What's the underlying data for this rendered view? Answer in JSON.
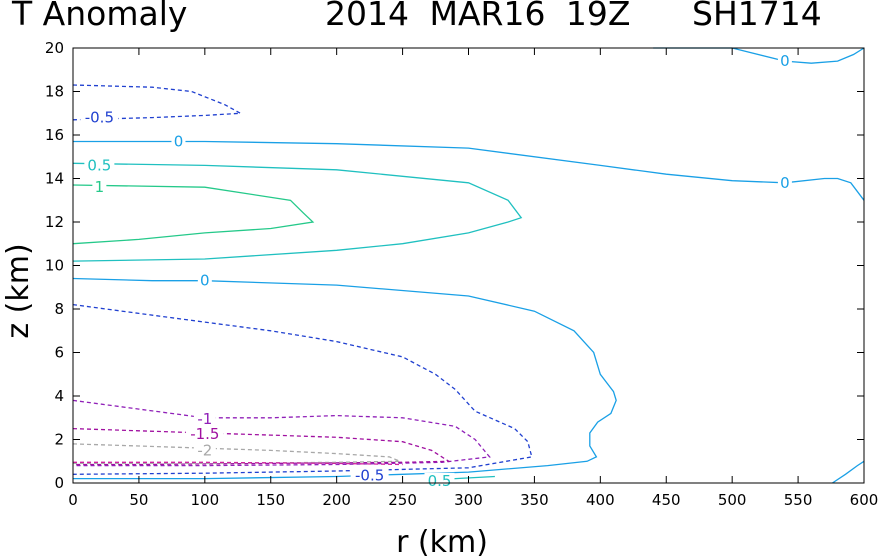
{
  "chart_data": {
    "type": "contour",
    "title": "T Anomaly",
    "subtitle": "2014 MAR16 19Z   SH1714",
    "xlabel": "r (km)",
    "ylabel": "z (km)",
    "xlim": [
      0,
      600
    ],
    "ylim": [
      0,
      20
    ],
    "x_ticks": [
      0,
      50,
      100,
      150,
      200,
      250,
      300,
      350,
      400,
      450,
      500,
      550,
      600
    ],
    "y_ticks": [
      0,
      2,
      4,
      6,
      8,
      10,
      12,
      14,
      16,
      18,
      20
    ],
    "grid": false,
    "colors": {
      "zero": "#1aa0e6",
      "pos05": "#20c0c0",
      "pos1": "#25c98a",
      "neg05": "#2040d0",
      "neg1": "#9020b8",
      "neg15": "#a010a0",
      "neg2": "#a8a8a8",
      "neg25": "#d020a0"
    },
    "contours": [
      {
        "level": "0",
        "color": "zero",
        "dashed": false,
        "points": [
          [
            440,
            20
          ],
          [
            500,
            20
          ],
          [
            540,
            19.4
          ],
          [
            560,
            19.3
          ],
          [
            580,
            19.4
          ],
          [
            592,
            19.7
          ],
          [
            600,
            20
          ]
        ]
      },
      {
        "level": "0",
        "color": "zero",
        "dashed": false,
        "points": [
          [
            0,
            15.7
          ],
          [
            100,
            15.7
          ],
          [
            200,
            15.6
          ],
          [
            300,
            15.4
          ],
          [
            400,
            14.6
          ],
          [
            450,
            14.2
          ],
          [
            500,
            13.9
          ],
          [
            540,
            13.8
          ],
          [
            570,
            14.0
          ],
          [
            580,
            14.0
          ],
          [
            590,
            13.8
          ],
          [
            600,
            13.0
          ]
        ]
      },
      {
        "level": "0",
        "color": "zero",
        "dashed": false,
        "points": [
          [
            0,
            9.4
          ],
          [
            60,
            9.3
          ],
          [
            100,
            9.3
          ],
          [
            200,
            9.1
          ],
          [
            300,
            8.6
          ],
          [
            350,
            7.9
          ],
          [
            380,
            7.0
          ],
          [
            395,
            6.0
          ],
          [
            400,
            5.0
          ],
          [
            410,
            4.2
          ],
          [
            412,
            3.8
          ],
          [
            408,
            3.2
          ],
          [
            398,
            2.8
          ],
          [
            392,
            2.3
          ],
          [
            392,
            1.7
          ],
          [
            397,
            1.2
          ],
          [
            390,
            1.0
          ],
          [
            360,
            0.8
          ],
          [
            300,
            0.5
          ],
          [
            250,
            0.4
          ],
          [
            200,
            0.3
          ],
          [
            100,
            0.2
          ],
          [
            0,
            0.2
          ]
        ]
      },
      {
        "level": "0",
        "color": "zero",
        "dashed": false,
        "points": [
          [
            576,
            0
          ],
          [
            586,
            0.4
          ],
          [
            595,
            0.8
          ],
          [
            600,
            1.0
          ]
        ]
      },
      {
        "level": "0.5",
        "color": "pos05",
        "dashed": false,
        "points": [
          [
            0,
            14.7
          ],
          [
            100,
            14.6
          ],
          [
            200,
            14.4
          ],
          [
            300,
            13.8
          ],
          [
            330,
            13.0
          ],
          [
            340,
            12.2
          ],
          [
            330,
            12.0
          ],
          [
            300,
            11.5
          ],
          [
            250,
            11.0
          ],
          [
            200,
            10.7
          ],
          [
            100,
            10.3
          ],
          [
            0,
            10.2
          ]
        ]
      },
      {
        "level": "0.5",
        "color": "pos05",
        "dashed": false,
        "points": [
          [
            270,
            0.1
          ],
          [
            290,
            0.2
          ],
          [
            320,
            0.3
          ]
        ]
      },
      {
        "level": "1",
        "color": "pos1",
        "dashed": false,
        "points": [
          [
            0,
            13.7
          ],
          [
            100,
            13.6
          ],
          [
            165,
            13.0
          ],
          [
            175,
            12.4
          ],
          [
            182,
            12.0
          ],
          [
            150,
            11.7
          ],
          [
            100,
            11.5
          ],
          [
            50,
            11.2
          ],
          [
            0,
            11.0
          ]
        ]
      },
      {
        "level": "-0.5",
        "color": "neg05",
        "dashed": true,
        "points": [
          [
            0,
            18.3
          ],
          [
            60,
            18.2
          ],
          [
            90,
            18.0
          ],
          [
            115,
            17.4
          ],
          [
            127,
            17.0
          ],
          [
            100,
            16.9
          ],
          [
            60,
            16.8
          ],
          [
            0,
            16.7
          ]
        ]
      },
      {
        "level": "-0.5",
        "color": "neg05",
        "dashed": true,
        "points": [
          [
            0,
            8.2
          ],
          [
            50,
            7.8
          ],
          [
            100,
            7.4
          ],
          [
            150,
            7.0
          ],
          [
            200,
            6.5
          ],
          [
            250,
            5.8
          ],
          [
            275,
            5.0
          ],
          [
            290,
            4.3
          ],
          [
            305,
            3.3
          ],
          [
            320,
            2.9
          ],
          [
            335,
            2.5
          ],
          [
            345,
            1.9
          ],
          [
            348,
            1.2
          ],
          [
            300,
            0.7
          ],
          [
            200,
            0.55
          ],
          [
            100,
            0.45
          ],
          [
            0,
            0.4
          ]
        ]
      },
      {
        "level": "-1",
        "color": "neg1",
        "dashed": true,
        "points": [
          [
            0,
            3.8
          ],
          [
            50,
            3.4
          ],
          [
            100,
            3.0
          ],
          [
            150,
            3.0
          ],
          [
            200,
            3.1
          ],
          [
            250,
            3.0
          ],
          [
            290,
            2.6
          ],
          [
            305,
            2.0
          ],
          [
            316,
            1.2
          ],
          [
            280,
            0.95
          ],
          [
            200,
            0.85
          ],
          [
            100,
            0.8
          ],
          [
            0,
            0.8
          ]
        ]
      },
      {
        "level": "-1.5",
        "color": "neg15",
        "dashed": true,
        "points": [
          [
            0,
            2.5
          ],
          [
            50,
            2.4
          ],
          [
            100,
            2.3
          ],
          [
            150,
            2.2
          ],
          [
            200,
            2.1
          ],
          [
            250,
            1.9
          ],
          [
            272,
            1.5
          ],
          [
            285,
            1.0
          ],
          [
            250,
            0.95
          ],
          [
            150,
            0.9
          ],
          [
            50,
            0.85
          ],
          [
            0,
            0.85
          ]
        ]
      },
      {
        "level": "-2",
        "color": "neg2",
        "dashed": true,
        "points": [
          [
            0,
            1.8
          ],
          [
            50,
            1.7
          ],
          [
            100,
            1.6
          ],
          [
            150,
            1.5
          ],
          [
            200,
            1.35
          ],
          [
            240,
            1.2
          ],
          [
            248,
            1.0
          ],
          [
            200,
            0.95
          ],
          [
            100,
            0.9
          ],
          [
            0,
            0.9
          ]
        ]
      },
      {
        "level": "-2.5",
        "color": "neg25",
        "dashed": true,
        "points": [
          [
            0,
            0.95
          ],
          [
            100,
            0.95
          ],
          [
            200,
            0.9
          ],
          [
            250,
            0.85
          ]
        ]
      }
    ],
    "contour_labels": [
      {
        "text": "0",
        "x": 540,
        "y": 19.4,
        "color": "zero"
      },
      {
        "text": "0",
        "x": 80,
        "y": 15.7,
        "color": "zero"
      },
      {
        "text": "0",
        "x": 540,
        "y": 13.8,
        "color": "zero"
      },
      {
        "text": "0",
        "x": 100,
        "y": 9.3,
        "color": "zero"
      },
      {
        "text": "0.5",
        "x": 20,
        "y": 14.6,
        "color": "pos05"
      },
      {
        "text": "1",
        "x": 20,
        "y": 13.6,
        "color": "pos1"
      },
      {
        "text": "-0.5",
        "x": 20,
        "y": 16.8,
        "color": "neg05"
      },
      {
        "text": "-0.5",
        "x": 225,
        "y": 0.35,
        "color": "neg05"
      },
      {
        "text": "-1",
        "x": 100,
        "y": 2.95,
        "color": "neg1"
      },
      {
        "text": "-1.5",
        "x": 100,
        "y": 2.25,
        "color": "neg15"
      },
      {
        "text": "-2",
        "x": 100,
        "y": 1.5,
        "color": "neg2"
      },
      {
        "text": "0.5",
        "x": 278,
        "y": 0.1,
        "color": "pos05"
      }
    ]
  }
}
